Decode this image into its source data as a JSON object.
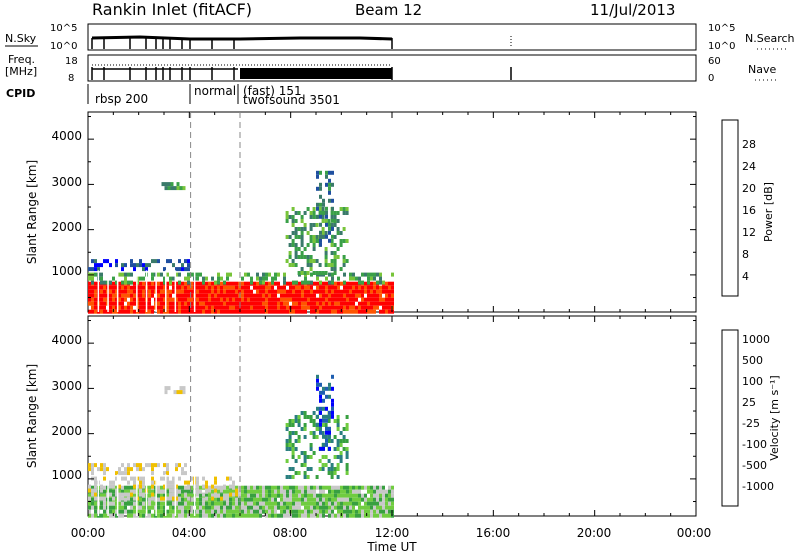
{
  "header": {
    "station": "Rankin Inlet (fitACF)",
    "beam": "Beam 12",
    "date": "11/Jul/2013"
  },
  "top_panels": {
    "nsky_label": "N.Sky",
    "nsky_ticks": [
      "10^5",
      "10^0"
    ],
    "nsearch_label": "N.Search",
    "nsearch_ticks": [
      "10^5",
      "10^0"
    ],
    "freq_label": "Freq.",
    "freq_unit": "[MHz]",
    "freq_ticks": [
      "18",
      "8"
    ],
    "nave_label": "Nave",
    "nave_ticks": [
      "60",
      "0"
    ],
    "cpid_label": "CPID",
    "cpid_modes": [
      "rbsp 200",
      "normal",
      "(fast) 151",
      "twofsound 3501"
    ]
  },
  "colors": {
    "power": [
      "#0000ff",
      "#1f4fa0",
      "#3a7a6a",
      "#3aa048",
      "#78c43a",
      "#f0c000",
      "#ff9a00",
      "#ff5500",
      "#ff0000"
    ],
    "velocity": [
      "#ff0000",
      "#ff5a00",
      "#ff9600",
      "#f0c000",
      "#c8c8c8",
      "#c8c8c8",
      "#70cc40",
      "#38a040",
      "#2a7f7f",
      "#1f5fb0",
      "#0000ff"
    ]
  },
  "chart_data": [
    {
      "type": "heatmap",
      "panel": "power",
      "ylabel": "Slant Range [km]",
      "yticks": [
        "1000",
        "2000",
        "3000",
        "4000"
      ],
      "ylim": [
        180,
        4600
      ],
      "xlim_hours": [
        0,
        24
      ],
      "colorbar_label": "Power [dB]",
      "colorbar_ticks": [
        "4",
        "8",
        "12",
        "16",
        "20",
        "24",
        "28"
      ],
      "data_end_hour": 12,
      "bands": [
        {
          "t0": 0.0,
          "t1": 12.0,
          "r0": 180,
          "r1": 850,
          "level": 8
        },
        {
          "t0": 0.0,
          "t1": 12.0,
          "r0": 850,
          "r1": 1050,
          "level": 3
        },
        {
          "t0": 0.0,
          "t1": 4.0,
          "r0": 1150,
          "r1": 1350,
          "level": 1
        },
        {
          "t0": 7.8,
          "t1": 10.2,
          "r0": 1050,
          "r1": 2500,
          "level": 3
        },
        {
          "t0": 9.0,
          "t1": 9.6,
          "r0": 1700,
          "r1": 3300,
          "level": 2
        },
        {
          "t0": 2.9,
          "t1": 3.8,
          "r0": 2900,
          "r1": 3050,
          "level": 3
        }
      ]
    },
    {
      "type": "heatmap",
      "panel": "velocity",
      "ylabel": "Slant Range [km]",
      "yticks": [
        "1000",
        "2000",
        "3000",
        "4000"
      ],
      "ylim": [
        180,
        4600
      ],
      "xlim_hours": [
        0,
        24
      ],
      "xticks": [
        "00:00",
        "04:00",
        "08:00",
        "12:00",
        "16:00",
        "20:00",
        "00:00"
      ],
      "xlabel": "Time UT",
      "colorbar_label": "Velocity [m s⁻¹]",
      "colorbar_ticks": [
        "-1000",
        "-500",
        "-100",
        "-25",
        "25",
        "100",
        "500",
        "1000"
      ],
      "data_end_hour": 12,
      "bands": [
        {
          "t0": 0.0,
          "t1": 12.0,
          "r0": 180,
          "r1": 850,
          "level": 6
        },
        {
          "t0": 0.0,
          "t1": 6.0,
          "r0": 600,
          "r1": 1050,
          "level": 4
        },
        {
          "t0": 0.0,
          "t1": 4.0,
          "r0": 1150,
          "r1": 1350,
          "level": 4
        },
        {
          "t0": 7.8,
          "t1": 10.2,
          "r0": 1050,
          "r1": 2500,
          "level": 7
        },
        {
          "t0": 9.0,
          "t1": 9.6,
          "r0": 1700,
          "r1": 3300,
          "level": 9
        },
        {
          "t0": 2.9,
          "t1": 3.8,
          "r0": 2900,
          "r1": 3050,
          "level": 4
        }
      ]
    }
  ]
}
